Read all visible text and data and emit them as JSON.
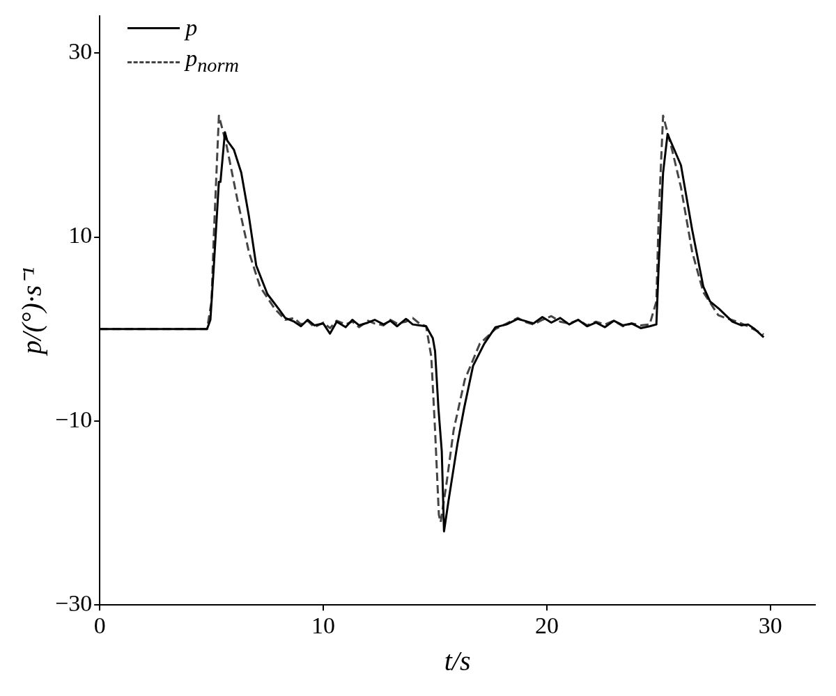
{
  "chart_data": {
    "type": "line",
    "xlabel": "t/s",
    "ylabel": "p/(°)·s⁻¹",
    "xlim": [
      0,
      32
    ],
    "xticks": [
      0,
      10,
      20,
      30
    ],
    "ylim": [
      -30,
      34
    ],
    "yticks": [
      -30,
      -10,
      10,
      30
    ],
    "legend": "top left",
    "marker": "none",
    "series": [
      {
        "name": "p",
        "color": "#000000",
        "line_style": "solid",
        "x": [
          0,
          4.8,
          4.95,
          5.1,
          5.33,
          5.4,
          5.6,
          5.7,
          6.0,
          6.33,
          6.67,
          7.0,
          7.5,
          8.0,
          8.3,
          8.7,
          9.0,
          9.3,
          9.6,
          10.0,
          10.3,
          10.6,
          11.0,
          11.3,
          11.6,
          12.0,
          12.3,
          12.7,
          13.0,
          13.3,
          13.7,
          14.0,
          14.3,
          14.6,
          14.9,
          15.0,
          15.15,
          15.3,
          15.4,
          15.6,
          16.0,
          16.3,
          16.7,
          17.2,
          17.7,
          18.2,
          18.7,
          19.0,
          19.4,
          19.8,
          20.2,
          20.6,
          21.0,
          21.4,
          21.8,
          22.2,
          22.6,
          23.0,
          23.4,
          23.8,
          24.2,
          24.6,
          24.9,
          25.0,
          25.2,
          25.4,
          25.7,
          26.0,
          26.5,
          27.0,
          27.3,
          27.7,
          28.0,
          28.3,
          28.7,
          29.0,
          29.3,
          29.7
        ],
        "values": [
          0,
          0,
          1,
          6.7,
          16,
          16,
          21.4,
          20.5,
          19.5,
          17,
          12.3,
          6.9,
          3.8,
          2.2,
          1.2,
          0.8,
          0.3,
          1.0,
          0.4,
          0.6,
          -0.5,
          0.8,
          0.2,
          1.0,
          0.4,
          0.7,
          1.0,
          0.5,
          0.9,
          0.3,
          1.1,
          0.5,
          0.4,
          0.3,
          -1.0,
          -2.4,
          -8.6,
          -13.3,
          -22,
          -18.7,
          -12.5,
          -8.6,
          -4,
          -1.6,
          0.2,
          0.5,
          1.1,
          0.9,
          0.6,
          1.3,
          0.7,
          1.2,
          0.5,
          1.0,
          0.3,
          0.7,
          0.2,
          0.9,
          0.4,
          0.6,
          0.1,
          0.3,
          0.5,
          6.7,
          17,
          21.2,
          19.5,
          17.8,
          10.8,
          4.6,
          3.0,
          2.2,
          1.5,
          0.8,
          0.4,
          0.5,
          0,
          -0.9
        ]
      },
      {
        "name": "p$_{norm}$",
        "color": "#444444",
        "line_style": "dashed",
        "x": [
          0,
          4.8,
          5.0,
          5.1,
          5.33,
          5.67,
          6.17,
          6.67,
          7.17,
          7.83,
          8.3,
          8.7,
          9.0,
          9.3,
          9.6,
          10.0,
          10.3,
          10.6,
          11.0,
          11.3,
          11.6,
          12.0,
          12.3,
          12.7,
          13.0,
          13.3,
          13.7,
          14.0,
          14.3,
          14.6,
          14.83,
          15.0,
          15.17,
          15.25,
          15.5,
          15.83,
          16.33,
          17.0,
          17.7,
          18.2,
          18.7,
          19.0,
          19.4,
          19.8,
          20.2,
          20.6,
          21.0,
          21.4,
          21.8,
          22.2,
          22.6,
          23.0,
          23.4,
          23.8,
          24.2,
          24.6,
          24.9,
          25.0,
          25.2,
          25.6,
          26.0,
          26.5,
          27.0,
          27.67,
          28.0,
          28.5,
          29.0,
          29.7
        ],
        "values": [
          0,
          0,
          3,
          10,
          23.2,
          20,
          13.9,
          8.4,
          4.6,
          2.2,
          1.0,
          1.2,
          0.5,
          0.9,
          0.2,
          0.7,
          0.1,
          0.9,
          0.5,
          0.8,
          0.2,
          0.9,
          0.6,
          0.4,
          1.0,
          0.6,
          0.8,
          1.2,
          0.6,
          0.3,
          -3,
          -11,
          -20.2,
          -21,
          -17,
          -11,
          -5.5,
          -1.6,
          0,
          0.6,
          1.2,
          0.8,
          0.5,
          1.0,
          1.4,
          0.8,
          0.6,
          1.0,
          0.4,
          0.8,
          0.5,
          0.9,
          0.3,
          0.6,
          0.4,
          0.5,
          3,
          12,
          23.2,
          19.5,
          15.4,
          8.4,
          4.0,
          1.5,
          1.2,
          0.8,
          0.3,
          -0.6
        ]
      }
    ]
  }
}
